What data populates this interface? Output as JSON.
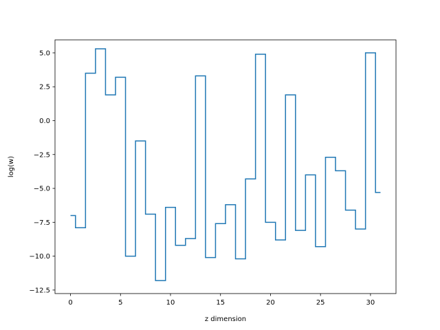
{
  "chart_data": {
    "type": "line",
    "drawstyle": "steps-mid",
    "title": "",
    "xlabel": "z dimension",
    "ylabel": "log(w)",
    "xlim": [
      -1.55,
      32.55
    ],
    "ylim": [
      -12.76,
      5.96
    ],
    "grid": false,
    "line_color": "#1f77b4",
    "x_ticks": [
      0,
      5,
      10,
      15,
      20,
      25,
      30
    ],
    "x_tick_labels": [
      "0",
      "5",
      "10",
      "15",
      "20",
      "25",
      "30"
    ],
    "y_ticks": [
      -12.5,
      -10.0,
      -7.5,
      -5.0,
      -2.5,
      0.0,
      2.5,
      5.0
    ],
    "y_tick_labels": [
      "−12.5",
      "−10.0",
      "−7.5",
      "−5.0",
      "−2.5",
      "0.0",
      "2.5",
      "5.0"
    ],
    "series": [
      {
        "x": [
          0,
          1,
          2,
          3,
          4,
          5,
          6,
          7,
          8,
          9,
          10,
          11,
          12,
          13,
          14,
          15,
          16,
          17,
          18,
          19,
          20,
          21,
          22,
          23,
          24,
          25,
          26,
          27,
          28,
          29,
          30,
          31
        ],
        "y": [
          -7.0,
          -7.9,
          3.5,
          5.3,
          1.9,
          3.2,
          -10.0,
          -1.5,
          -6.9,
          -11.8,
          -6.4,
          -9.2,
          -8.7,
          3.3,
          -10.1,
          -7.6,
          -6.2,
          -10.2,
          -4.3,
          4.9,
          -7.5,
          -8.8,
          1.9,
          -8.1,
          -4.0,
          -9.3,
          -2.7,
          -3.7,
          -6.6,
          -8.0,
          5.0,
          -5.3
        ]
      }
    ]
  }
}
